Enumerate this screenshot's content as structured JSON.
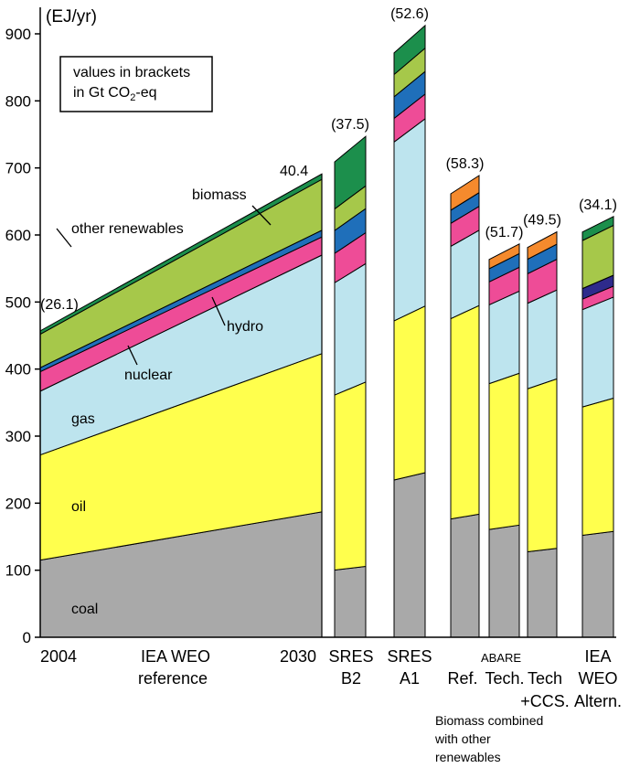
{
  "chart_data": {
    "type": "area",
    "y_unit": "(EJ/yr)",
    "ylim": [
      0,
      950
    ],
    "y_ticks": [
      0,
      100,
      200,
      300,
      400,
      500,
      600,
      700,
      800,
      900
    ],
    "grid": false,
    "legend_note": [
      "values in brackets",
      "in Gt CO",
      "2",
      "-eq"
    ],
    "colors": {
      "coal": "#a9a9a9",
      "oil": "#ffff4d",
      "gas": "#bde4ee",
      "nuclear": "#ee4c97",
      "hydro": "#1f6fba",
      "other renewables": "#a6c84a",
      "biomass": "#1c8f4c",
      "other": "#f58a2d",
      "extra": "#2e2a8c"
    },
    "reference": {
      "x": [
        "2004",
        "2030"
      ],
      "label": [
        "IEA WEO",
        "reference"
      ],
      "series": [
        {
          "name": "coal",
          "values": [
            115,
            187
          ]
        },
        {
          "name": "oil",
          "values": [
            157,
            236
          ]
        },
        {
          "name": "gas",
          "values": [
            95,
            147
          ]
        },
        {
          "name": "nuclear",
          "values": [
            29,
            27
          ]
        },
        {
          "name": "hydro",
          "values": [
            6,
            10
          ]
        },
        {
          "name": "other renewables",
          "values": [
            50,
            76
          ]
        },
        {
          "name": "biomass",
          "values": [
            5,
            8
          ]
        }
      ],
      "co2_labels": [
        "(26.1)",
        "40.4"
      ]
    },
    "area_labels": [
      {
        "text": "biomass"
      },
      {
        "text": "other renewables"
      },
      {
        "text": "hydro"
      },
      {
        "text": "nuclear"
      },
      {
        "text": "gas"
      },
      {
        "text": "oil"
      },
      {
        "text": "coal"
      }
    ],
    "scenarios": [
      {
        "label": [
          "SRES",
          "B2"
        ],
        "co2": "(37.5)",
        "top_slope": 28,
        "segments": [
          {
            "name": "coal",
            "value": 103
          },
          {
            "name": "oil",
            "value": 268
          },
          {
            "name": "gas",
            "value": 172
          },
          {
            "name": "nuclear",
            "value": 45
          },
          {
            "name": "hydro",
            "value": 35
          },
          {
            "name": "other renewables",
            "value": 33
          },
          {
            "name": "biomass",
            "value": 72
          }
        ]
      },
      {
        "label": [
          "SRES",
          "A1"
        ],
        "co2": "(52.6)",
        "top_slope": 30,
        "segments": [
          {
            "name": "coal",
            "value": 240
          },
          {
            "name": "oil",
            "value": 243
          },
          {
            "name": "gas",
            "value": 273
          },
          {
            "name": "nuclear",
            "value": 36
          },
          {
            "name": "hydro",
            "value": 33
          },
          {
            "name": "other renewables",
            "value": 34
          },
          {
            "name": "biomass",
            "value": 33
          }
        ]
      },
      {
        "label": [
          "Ref."
        ],
        "co2": "(58.3)",
        "top_slope": 20,
        "segments": [
          {
            "name": "coal",
            "value": 180
          },
          {
            "name": "oil",
            "value": 305
          },
          {
            "name": "gas",
            "value": 110
          },
          {
            "name": "nuclear",
            "value": 35
          },
          {
            "name": "hydro",
            "value": 20
          },
          {
            "name": "other",
            "value": 25
          }
        ]
      },
      {
        "label": [
          "Tech."
        ],
        "co2": "(51.7)",
        "top_slope": 17,
        "segments": [
          {
            "name": "coal",
            "value": 164
          },
          {
            "name": "oil",
            "value": 222
          },
          {
            "name": "gas",
            "value": 120
          },
          {
            "name": "nuclear",
            "value": 35
          },
          {
            "name": "hydro",
            "value": 20
          },
          {
            "name": "other",
            "value": 14
          }
        ]
      },
      {
        "label": [
          "Tech",
          "+CCS."
        ],
        "co2": "(49.5)",
        "top_slope": 17,
        "segments": [
          {
            "name": "coal",
            "value": 130
          },
          {
            "name": "oil",
            "value": 248
          },
          {
            "name": "gas",
            "value": 130
          },
          {
            "name": "nuclear",
            "value": 45
          },
          {
            "name": "hydro",
            "value": 22
          },
          {
            "name": "other",
            "value": 18
          }
        ]
      },
      {
        "label": [
          "IEA",
          "WEO",
          "Altern."
        ],
        "co2": "(34.1)",
        "top_slope": 17,
        "segments": [
          {
            "name": "coal",
            "value": 155
          },
          {
            "name": "oil",
            "value": 195
          },
          {
            "name": "gas",
            "value": 148
          },
          {
            "name": "nuclear",
            "value": 16
          },
          {
            "name": "extra",
            "value": 16
          },
          {
            "name": "other renewables",
            "value": 73
          },
          {
            "name": "biomass",
            "value": 13
          }
        ]
      }
    ],
    "group_label": "ABARE",
    "footnote": [
      "Biomass combined",
      "with other",
      "renewables"
    ]
  }
}
